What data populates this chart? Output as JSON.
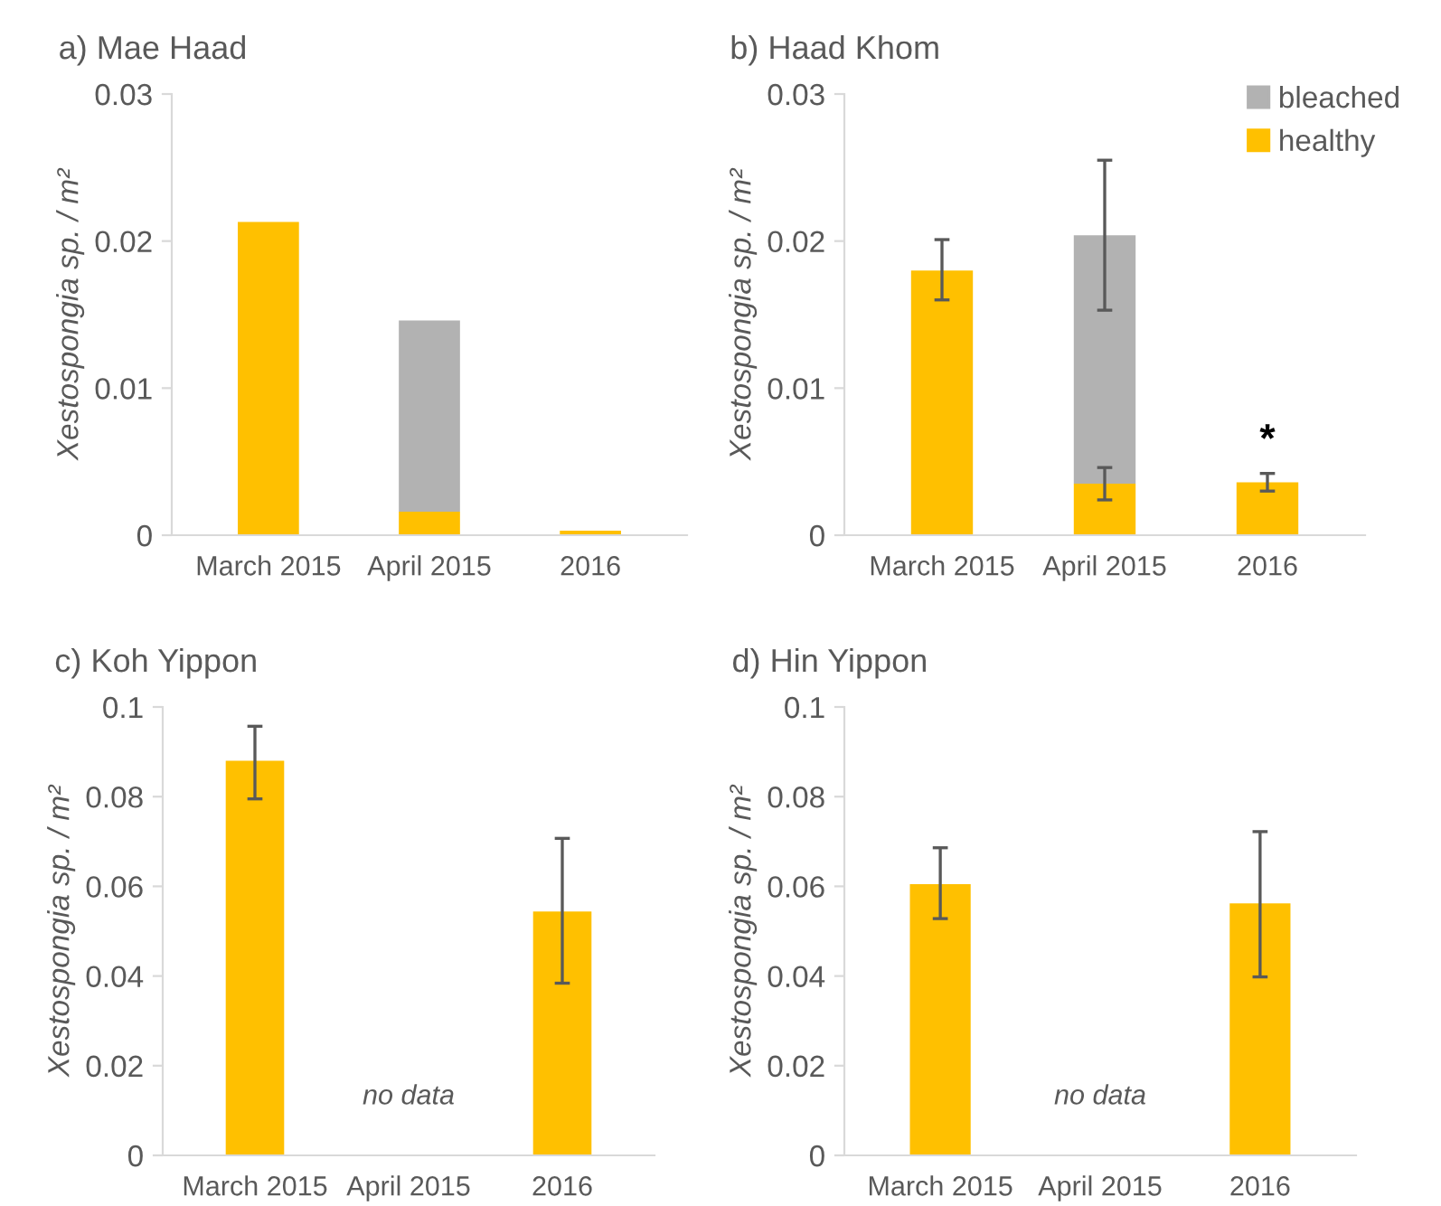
{
  "chart_data": [
    {
      "type": "bar",
      "title": "a) Mae Haad",
      "ylabel": "Xestospongia sp. / m²",
      "categories": [
        "March 2015",
        "April 2015",
        "2016"
      ],
      "stacked": true,
      "ylim": [
        0,
        0.03
      ],
      "yticks": [
        0,
        0.01,
        0.02,
        0.03
      ],
      "grid": false,
      "legend": false,
      "series": [
        {
          "color": "#ffc000",
          "values": [
            0.0213,
            0.0016,
            0.0003
          ]
        },
        {
          "color": "#b2b2b2",
          "values": [
            null,
            0.013,
            null
          ]
        }
      ]
    },
    {
      "type": "bar",
      "title": "b) Haad Khom",
      "ylabel": "Xestospongia sp. / m²",
      "categories": [
        "March 2015",
        "April 2015",
        "2016"
      ],
      "stacked": true,
      "ylim": [
        0,
        0.03
      ],
      "yticks": [
        0,
        0.01,
        0.02,
        0.03
      ],
      "grid": false,
      "legend": "top right",
      "annotations": [
        "*"
      ],
      "series": [
        {
          "name": "healthy",
          "color": "#ffc000",
          "values": [
            0.018,
            0.0035,
            0.0036
          ],
          "errors": [
            [
              0.016,
              0.0201
            ],
            [
              0.0024,
              0.0046
            ],
            [
              0.003,
              0.0042
            ]
          ]
        },
        {
          "name": "bleached",
          "color": "#b2b2b2",
          "values": [
            null,
            0.0169,
            null
          ],
          "errors": [
            null,
            [
              0.0153,
              0.0255
            ],
            null
          ]
        }
      ]
    },
    {
      "type": "bar",
      "title": "c) Koh Yippon",
      "ylabel": "Xestospongia sp. / m²",
      "categories": [
        "March 2015",
        "April 2015",
        "2016"
      ],
      "ylim": [
        0,
        0.1
      ],
      "yticks": [
        0,
        0.02,
        0.04,
        0.06,
        0.08,
        0.1
      ],
      "grid": false,
      "legend": false,
      "annotations": [
        "no data"
      ],
      "series": [
        {
          "color": "#ffc000",
          "values": [
            0.088,
            null,
            0.0544
          ],
          "errors": [
            [
              0.0795,
              0.0957
            ],
            null,
            [
              0.0384,
              0.0707
            ]
          ]
        }
      ]
    },
    {
      "type": "bar",
      "title": "d) Hin Yippon",
      "ylabel": "Xestospongia sp. / m²",
      "categories": [
        "March 2015",
        "April 2015",
        "2016"
      ],
      "ylim": [
        0,
        0.1
      ],
      "yticks": [
        0,
        0.02,
        0.04,
        0.06,
        0.08,
        0.1
      ],
      "grid": false,
      "legend": false,
      "annotations": [
        "no data"
      ],
      "series": [
        {
          "color": "#ffc000",
          "values": [
            0.0605,
            null,
            0.0562
          ],
          "errors": [
            [
              0.0528,
              0.0686
            ],
            null,
            [
              0.0398,
              0.0722
            ]
          ]
        }
      ]
    }
  ]
}
